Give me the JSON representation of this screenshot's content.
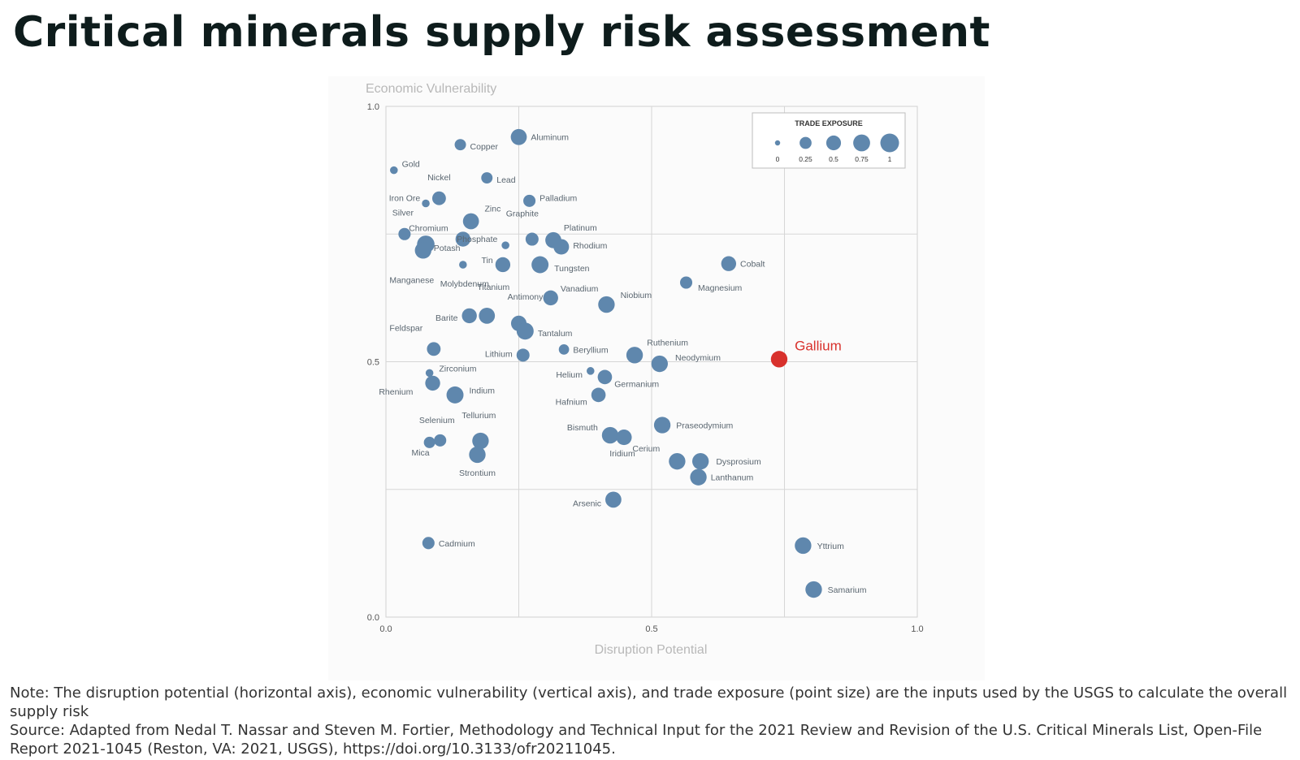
{
  "title": "Critical minerals supply risk assessment",
  "chart_data": {
    "type": "scatter",
    "ylabel": "Economic Vulnerability",
    "xlabel": "Disruption Potential",
    "xlim": [
      0,
      1
    ],
    "ylim": [
      0,
      1
    ],
    "x_ticks": [
      "0.0",
      "0.5",
      "1.0"
    ],
    "y_ticks": [
      "1.0",
      "0.5",
      "0.0"
    ],
    "grid": "quarters",
    "size_legend": {
      "title": "TRADE EXPOSURE",
      "placement": "top-right",
      "entries": [
        {
          "label": "0",
          "value": 0
        },
        {
          "label": "0.25",
          "value": 0.25
        },
        {
          "label": "0.5",
          "value": 0.5
        },
        {
          "label": "0.75",
          "value": 0.75
        },
        {
          "label": "1",
          "value": 1
        }
      ]
    },
    "colors": {
      "default": "#5f87ad",
      "highlight": "#d8312c"
    },
    "highlight": "Gallium",
    "points": [
      {
        "name": "Aluminum",
        "x": 0.25,
        "y": 0.94,
        "size": 0.5
      },
      {
        "name": "Copper",
        "x": 0.14,
        "y": 0.925,
        "size": 0.15
      },
      {
        "name": "Gold",
        "x": 0.015,
        "y": 0.875,
        "size": 0.02
      },
      {
        "name": "Lead",
        "x": 0.19,
        "y": 0.86,
        "size": 0.15
      },
      {
        "name": "Nickel",
        "x": 0.1,
        "y": 0.82,
        "size": 0.3
      },
      {
        "name": "Iron Ore",
        "x": 0.075,
        "y": 0.81,
        "size": 0.02
      },
      {
        "name": "Palladium",
        "x": 0.27,
        "y": 0.815,
        "size": 0.2
      },
      {
        "name": "Zinc",
        "x": 0.16,
        "y": 0.775,
        "size": 0.5
      },
      {
        "name": "Silver",
        "x": 0.035,
        "y": 0.75,
        "size": 0.2
      },
      {
        "name": "Chromium",
        "x": 0.145,
        "y": 0.74,
        "size": 0.4
      },
      {
        "name": "Graphite",
        "x": 0.275,
        "y": 0.74,
        "size": 0.25
      },
      {
        "name": "Phosphate",
        "x": 0.225,
        "y": 0.728,
        "size": 0.02
      },
      {
        "name": "Platinum",
        "x": 0.315,
        "y": 0.738,
        "size": 0.5
      },
      {
        "name": "Rhodium",
        "x": 0.33,
        "y": 0.725,
        "size": 0.45
      },
      {
        "name": "Potash",
        "x": 0.075,
        "y": 0.73,
        "size": 0.65
      },
      {
        "name": "Manganese",
        "x": 0.07,
        "y": 0.718,
        "size": 0.55
      },
      {
        "name": "Tin",
        "x": 0.22,
        "y": 0.69,
        "size": 0.4
      },
      {
        "name": "Molybdenum",
        "x": 0.145,
        "y": 0.69,
        "size": 0.02
      },
      {
        "name": "Tungsten",
        "x": 0.29,
        "y": 0.69,
        "size": 0.6
      },
      {
        "name": "Cobalt",
        "x": 0.645,
        "y": 0.692,
        "size": 0.4
      },
      {
        "name": "Magnesium",
        "x": 0.565,
        "y": 0.655,
        "size": 0.2
      },
      {
        "name": "Vanadium",
        "x": 0.31,
        "y": 0.625,
        "size": 0.4
      },
      {
        "name": "Niobium",
        "x": 0.415,
        "y": 0.612,
        "size": 0.55
      },
      {
        "name": "Titanium",
        "x": 0.19,
        "y": 0.59,
        "size": 0.5
      },
      {
        "name": "Barite",
        "x": 0.157,
        "y": 0.59,
        "size": 0.4
      },
      {
        "name": "Antimony",
        "x": 0.25,
        "y": 0.575,
        "size": 0.45
      },
      {
        "name": "Tantalum",
        "x": 0.262,
        "y": 0.56,
        "size": 0.6
      },
      {
        "name": "Feldspar",
        "x": 0.09,
        "y": 0.525,
        "size": 0.3
      },
      {
        "name": "Beryllium",
        "x": 0.335,
        "y": 0.524,
        "size": 0.1
      },
      {
        "name": "Lithium",
        "x": 0.258,
        "y": 0.513,
        "size": 0.25
      },
      {
        "name": "Ruthenium",
        "x": 0.468,
        "y": 0.513,
        "size": 0.55
      },
      {
        "name": "Neodymium",
        "x": 0.515,
        "y": 0.496,
        "size": 0.55
      },
      {
        "name": "Gallium",
        "x": 0.74,
        "y": 0.505,
        "size": 0.55
      },
      {
        "name": "Zirconium",
        "x": 0.082,
        "y": 0.478,
        "size": 0.02
      },
      {
        "name": "Helium",
        "x": 0.385,
        "y": 0.482,
        "size": 0.02
      },
      {
        "name": "Germanium",
        "x": 0.412,
        "y": 0.47,
        "size": 0.35
      },
      {
        "name": "Rhenium",
        "x": 0.088,
        "y": 0.458,
        "size": 0.4
      },
      {
        "name": "Indium",
        "x": 0.13,
        "y": 0.435,
        "size": 0.6
      },
      {
        "name": "Hafnium",
        "x": 0.4,
        "y": 0.435,
        "size": 0.35
      },
      {
        "name": "Praseodymium",
        "x": 0.52,
        "y": 0.376,
        "size": 0.55
      },
      {
        "name": "Bismuth",
        "x": 0.422,
        "y": 0.356,
        "size": 0.55
      },
      {
        "name": "Iridium",
        "x": 0.448,
        "y": 0.352,
        "size": 0.45
      },
      {
        "name": "Tellurium",
        "x": 0.178,
        "y": 0.345,
        "size": 0.55
      },
      {
        "name": "Selenium",
        "x": 0.102,
        "y": 0.346,
        "size": 0.2
      },
      {
        "name": "Mica",
        "x": 0.082,
        "y": 0.342,
        "size": 0.15
      },
      {
        "name": "Strontium",
        "x": 0.172,
        "y": 0.318,
        "size": 0.55
      },
      {
        "name": "Cerium",
        "x": 0.548,
        "y": 0.305,
        "size": 0.55
      },
      {
        "name": "Dysprosium",
        "x": 0.592,
        "y": 0.305,
        "size": 0.55
      },
      {
        "name": "Lanthanum",
        "x": 0.588,
        "y": 0.274,
        "size": 0.55
      },
      {
        "name": "Arsenic",
        "x": 0.428,
        "y": 0.23,
        "size": 0.5
      },
      {
        "name": "Cadmium",
        "x": 0.08,
        "y": 0.145,
        "size": 0.2
      },
      {
        "name": "Yttrium",
        "x": 0.785,
        "y": 0.14,
        "size": 0.55
      },
      {
        "name": "Samarium",
        "x": 0.805,
        "y": 0.054,
        "size": 0.55
      }
    ]
  },
  "notes": {
    "note": "Note: The disruption potential (horizontal axis), economic vulnerability (vertical axis), and trade exposure (point size) are the inputs used by the USGS to calculate the overall supply risk",
    "source": "Source: Adapted from Nedal T. Nassar and Steven M. Fortier, Methodology and Technical Input for the 2021 Review and Revision of the U.S. Critical Minerals List, Open-File Report 2021-1045 (Reston, VA: 2021, USGS), https://doi.org/10.3133/ofr20211045."
  }
}
